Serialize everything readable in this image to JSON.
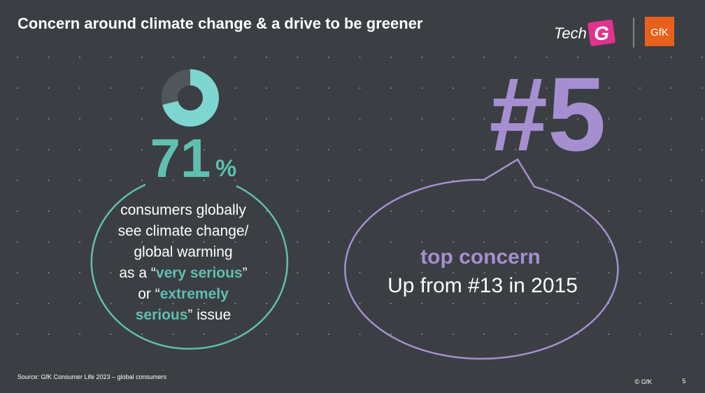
{
  "header": {
    "title": "Concern around climate change & a drive to be greener",
    "logo": {
      "tech": "Tech",
      "g": "G",
      "brand": "GfK"
    }
  },
  "stat": {
    "value": 71,
    "unit": "%",
    "max": 100,
    "lines": [
      [
        {
          "text": "consumers globally"
        }
      ],
      [
        {
          "text": "see climate change/"
        }
      ],
      [
        {
          "text": "global warming"
        }
      ],
      [
        {
          "text": "as a “"
        },
        {
          "text": "very serious",
          "highlight": true
        },
        {
          "text": "”"
        }
      ],
      [
        {
          "text": "or “"
        },
        {
          "text": "extremely",
          "highlight": true
        }
      ],
      [
        {
          "text": "serious",
          "highlight": true
        },
        {
          "text": "” issue"
        }
      ]
    ]
  },
  "rank": {
    "number": "#5",
    "label": "top concern",
    "detail": "Up from #13  in 2015"
  },
  "footer": {
    "source": "Source: GfK Consumer Life 2023 – global consumers",
    "copyright": "© GfK",
    "page": "5"
  }
}
